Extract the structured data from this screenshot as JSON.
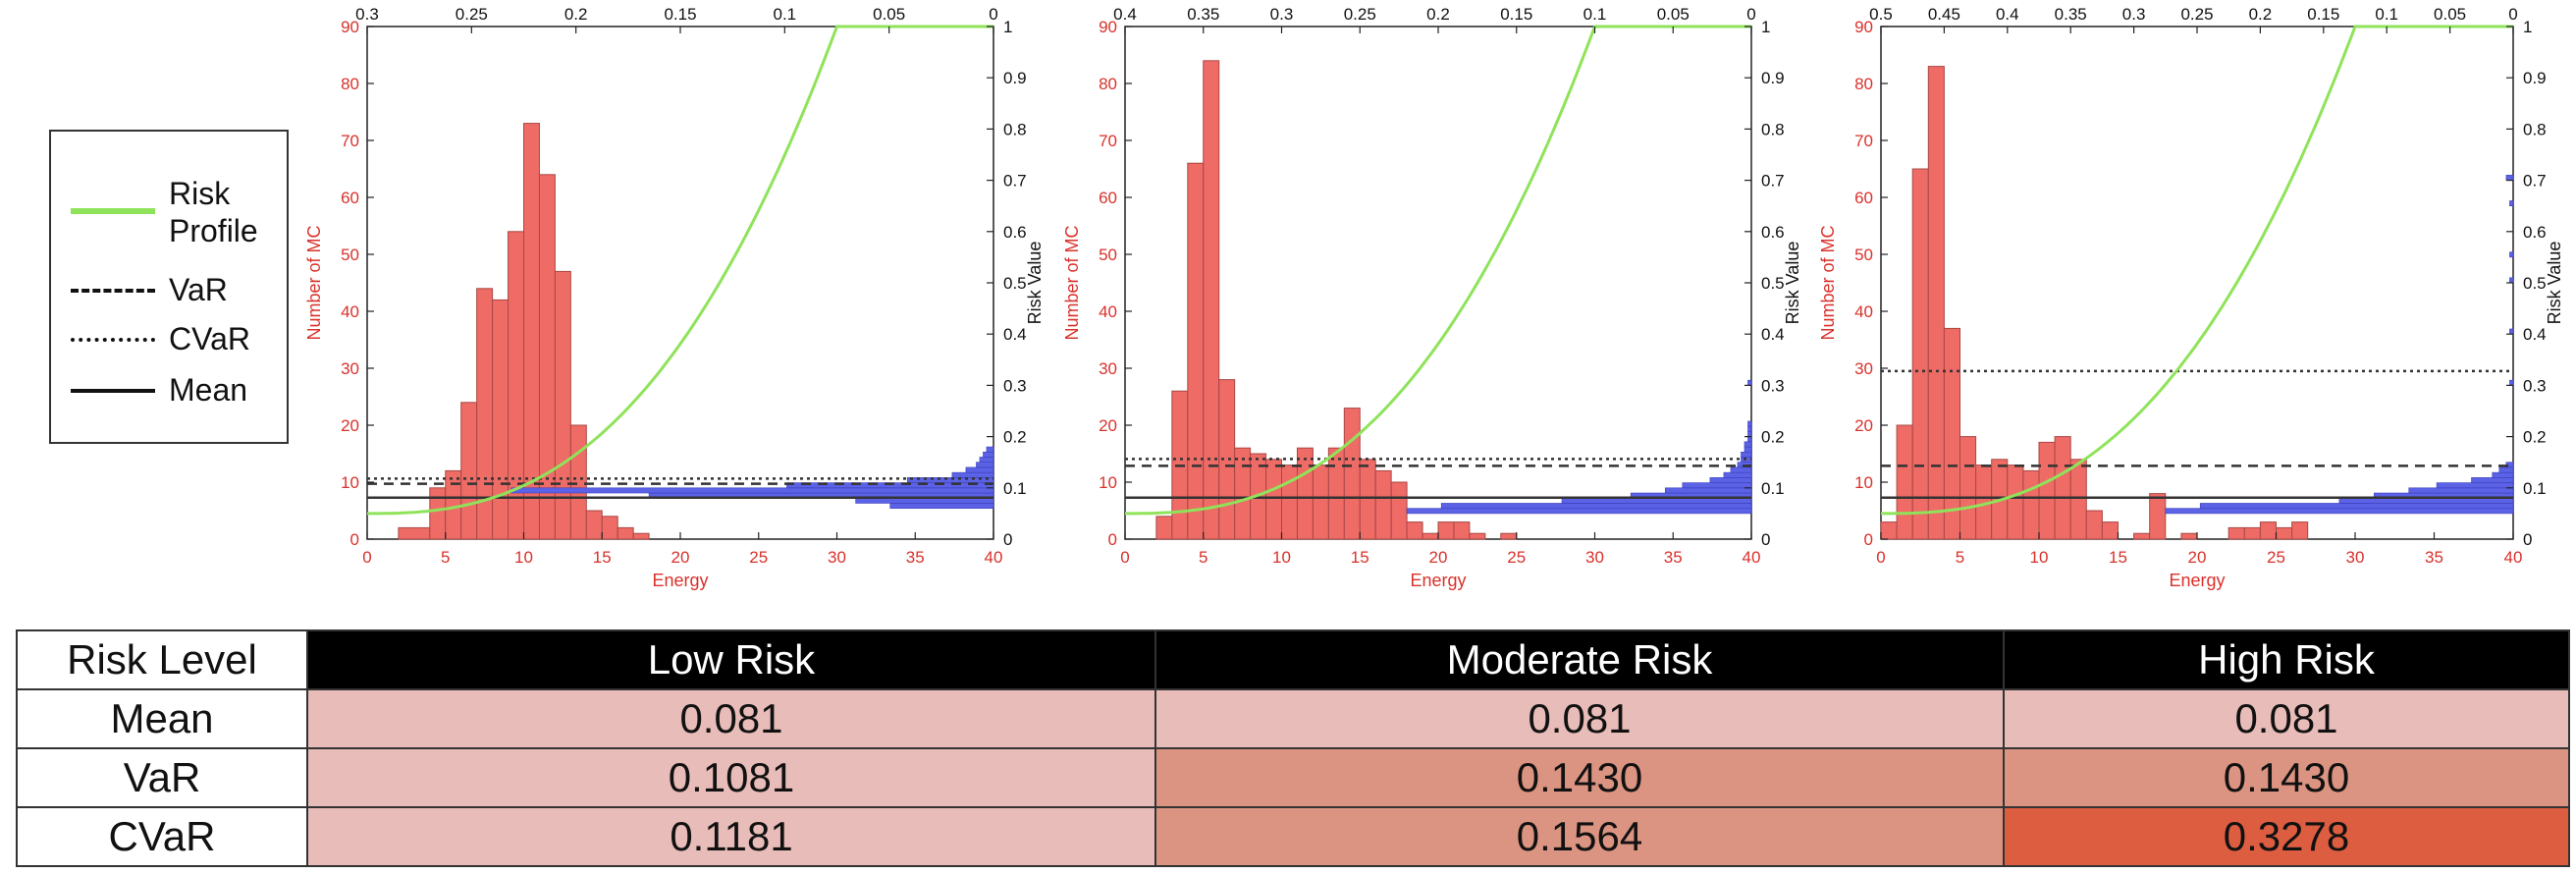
{
  "legend": {
    "items": [
      {
        "label_line1": "Risk",
        "label_line2": "Profile",
        "style": "solid",
        "color": "#8fe35a"
      },
      {
        "label_line1": "VaR",
        "label_line2": "",
        "style": "dashed",
        "color": "#111111"
      },
      {
        "label_line1": "CVaR",
        "label_line2": "",
        "style": "dotted",
        "color": "#111111"
      },
      {
        "label_line1": "Mean",
        "label_line2": "",
        "style": "solid",
        "color": "#111111"
      }
    ]
  },
  "colors": {
    "hist": "#ee6b66",
    "hist_edge": "#a84845",
    "axis_red": "#d9312b",
    "risk_profile": "#8fe35a",
    "blue": "#5c62e6"
  },
  "chart_data": [
    {
      "type": "bar",
      "title": "",
      "xlabel": "Energy",
      "ylabel": "Number of MC",
      "y2label": "Risk Value",
      "xlim": [
        0,
        40
      ],
      "ylim": [
        0,
        90
      ],
      "y2lim": [
        0,
        1
      ],
      "xticks": [
        0,
        5,
        10,
        15,
        20,
        25,
        30,
        35,
        40
      ],
      "yticks": [
        0,
        10,
        20,
        30,
        40,
        50,
        60,
        70,
        80,
        90
      ],
      "y2ticks": [
        0,
        0.1,
        0.2,
        0.3,
        0.4,
        0.5,
        0.6,
        0.7,
        0.8,
        0.9,
        1
      ],
      "top_ticks": [
        0.3,
        0.25,
        0.2,
        0.15,
        0.1,
        0.05,
        0
      ],
      "top_lim": [
        0.3,
        0
      ],
      "bins": [
        [
          2,
          4,
          2
        ],
        [
          4,
          5,
          9
        ],
        [
          5,
          6,
          12
        ],
        [
          6,
          7,
          24
        ],
        [
          7,
          8,
          44
        ],
        [
          8,
          9,
          42
        ],
        [
          9,
          10,
          54
        ],
        [
          10,
          11,
          73
        ],
        [
          11,
          12,
          64
        ],
        [
          12,
          13,
          47
        ],
        [
          13,
          14,
          20
        ],
        [
          14,
          15,
          5
        ],
        [
          15,
          16,
          4
        ],
        [
          16,
          17,
          2
        ],
        [
          17,
          18,
          1
        ]
      ],
      "risk_profile": {
        "xi": 30,
        "y0": 0.05
      },
      "var": 0.1081,
      "cvar": 0.1181,
      "mean": 0.081,
      "blue_dist": [
        [
          0.06,
          0.3
        ],
        [
          0.07,
          0.4
        ],
        [
          0.08,
          1.0
        ],
        [
          0.09,
          1.4
        ],
        [
          0.1,
          0.6
        ],
        [
          0.11,
          0.25
        ],
        [
          0.12,
          0.12
        ],
        [
          0.13,
          0.08
        ],
        [
          0.14,
          0.05
        ],
        [
          0.15,
          0.04
        ],
        [
          0.16,
          0.03
        ],
        [
          0.17,
          0.02
        ]
      ]
    },
    {
      "type": "bar",
      "title": "",
      "xlabel": "Energy",
      "ylabel": "Number of MC",
      "y2label": "Risk Value",
      "xlim": [
        0,
        40
      ],
      "ylim": [
        0,
        90
      ],
      "y2lim": [
        0,
        1
      ],
      "xticks": [
        0,
        5,
        10,
        15,
        20,
        25,
        30,
        35,
        40
      ],
      "yticks": [
        0,
        10,
        20,
        30,
        40,
        50,
        60,
        70,
        80,
        90
      ],
      "y2ticks": [
        0,
        0.1,
        0.2,
        0.3,
        0.4,
        0.5,
        0.6,
        0.7,
        0.8,
        0.9,
        1
      ],
      "top_ticks": [
        0.4,
        0.35,
        0.3,
        0.25,
        0.2,
        0.15,
        0.1,
        0.05,
        0
      ],
      "top_lim": [
        0.4,
        0
      ],
      "bins": [
        [
          2,
          3,
          4
        ],
        [
          3,
          4,
          26
        ],
        [
          4,
          5,
          66
        ],
        [
          5,
          6,
          84
        ],
        [
          6,
          7,
          28
        ],
        [
          7,
          8,
          16
        ],
        [
          8,
          9,
          15
        ],
        [
          9,
          10,
          14
        ],
        [
          10,
          11,
          13
        ],
        [
          11,
          12,
          16
        ],
        [
          12,
          13,
          13
        ],
        [
          13,
          14,
          16
        ],
        [
          14,
          15,
          23
        ],
        [
          15,
          16,
          14
        ],
        [
          16,
          17,
          12
        ],
        [
          17,
          18,
          10
        ],
        [
          18,
          19,
          3
        ],
        [
          19,
          20,
          1
        ],
        [
          20,
          21,
          3
        ],
        [
          21,
          22,
          3
        ],
        [
          22,
          23,
          1
        ],
        [
          24,
          25,
          1
        ]
      ],
      "risk_profile": {
        "xi": 30,
        "y0": 0.05
      },
      "var": 0.143,
      "cvar": 0.1564,
      "mean": 0.081,
      "blue_dist": [
        [
          0.05,
          1.0
        ],
        [
          0.06,
          0.9
        ],
        [
          0.07,
          0.55
        ],
        [
          0.08,
          0.35
        ],
        [
          0.09,
          0.25
        ],
        [
          0.1,
          0.2
        ],
        [
          0.11,
          0.12
        ],
        [
          0.12,
          0.08
        ],
        [
          0.13,
          0.06
        ],
        [
          0.14,
          0.04
        ],
        [
          0.15,
          0.03
        ],
        [
          0.16,
          0.03
        ],
        [
          0.17,
          0.02
        ],
        [
          0.18,
          0.02
        ],
        [
          0.19,
          0.01
        ],
        [
          0.2,
          0.01
        ],
        [
          0.21,
          0.01
        ],
        [
          0.22,
          0.01
        ],
        [
          0.3,
          0.01
        ]
      ]
    },
    {
      "type": "bar",
      "title": "",
      "xlabel": "Energy",
      "ylabel": "Number of MC",
      "y2label": "Risk Value",
      "xlim": [
        0,
        40
      ],
      "ylim": [
        0,
        90
      ],
      "y2lim": [
        0,
        1
      ],
      "xticks": [
        0,
        5,
        10,
        15,
        20,
        25,
        30,
        35,
        40
      ],
      "yticks": [
        0,
        10,
        20,
        30,
        40,
        50,
        60,
        70,
        80,
        90
      ],
      "y2ticks": [
        0,
        0.1,
        0.2,
        0.3,
        0.4,
        0.5,
        0.6,
        0.7,
        0.8,
        0.9,
        1
      ],
      "top_ticks": [
        0.5,
        0.45,
        0.4,
        0.35,
        0.3,
        0.25,
        0.2,
        0.15,
        0.1,
        0.05,
        0
      ],
      "top_lim": [
        0.5,
        0
      ],
      "bins": [
        [
          0,
          1,
          3
        ],
        [
          1,
          2,
          20
        ],
        [
          2,
          3,
          65
        ],
        [
          3,
          4,
          83
        ],
        [
          4,
          5,
          37
        ],
        [
          5,
          6,
          18
        ],
        [
          6,
          7,
          13
        ],
        [
          7,
          8,
          14
        ],
        [
          8,
          9,
          13
        ],
        [
          9,
          10,
          12
        ],
        [
          10,
          11,
          17
        ],
        [
          11,
          12,
          18
        ],
        [
          12,
          13,
          14
        ],
        [
          13,
          14,
          5
        ],
        [
          14,
          15,
          3
        ],
        [
          16,
          17,
          1
        ],
        [
          17,
          18,
          8
        ],
        [
          19,
          20,
          1
        ],
        [
          22,
          23,
          2
        ],
        [
          23,
          24,
          2
        ],
        [
          24,
          25,
          3
        ],
        [
          25,
          26,
          2
        ],
        [
          26,
          27,
          3
        ]
      ],
      "risk_profile": {
        "xi": 30,
        "y0": 0.05
      },
      "var": 0.143,
      "cvar": 0.3278,
      "mean": 0.081,
      "blue_dist": [
        [
          0.05,
          1.0
        ],
        [
          0.06,
          0.9
        ],
        [
          0.07,
          0.5
        ],
        [
          0.08,
          0.4
        ],
        [
          0.09,
          0.3
        ],
        [
          0.1,
          0.22
        ],
        [
          0.11,
          0.12
        ],
        [
          0.12,
          0.06
        ],
        [
          0.13,
          0.04
        ],
        [
          0.14,
          0.02
        ],
        [
          0.3,
          0.01
        ],
        [
          0.4,
          0.01
        ],
        [
          0.5,
          0.01
        ],
        [
          0.55,
          0.01
        ],
        [
          0.65,
          0.01
        ],
        [
          0.7,
          0.02
        ]
      ]
    }
  ],
  "table": {
    "header": [
      "Risk Level",
      "Low Risk",
      "Moderate Risk",
      "High Risk"
    ],
    "rows": [
      {
        "label": "Mean",
        "values": [
          "0.081",
          "0.081",
          "0.081"
        ],
        "colors": [
          "#e8bcb8",
          "#e8bcb8",
          "#e8bcb8"
        ]
      },
      {
        "label": "VaR",
        "values": [
          "0.1081",
          "0.1430",
          "0.1430"
        ],
        "colors": [
          "#e8bcb8",
          "#dc9482",
          "#dc9482"
        ]
      },
      {
        "label": "CVaR",
        "values": [
          "0.1181",
          "0.1564",
          "0.3278"
        ],
        "colors": [
          "#e8bcb8",
          "#dc9482",
          "#dd5d40"
        ]
      }
    ]
  }
}
